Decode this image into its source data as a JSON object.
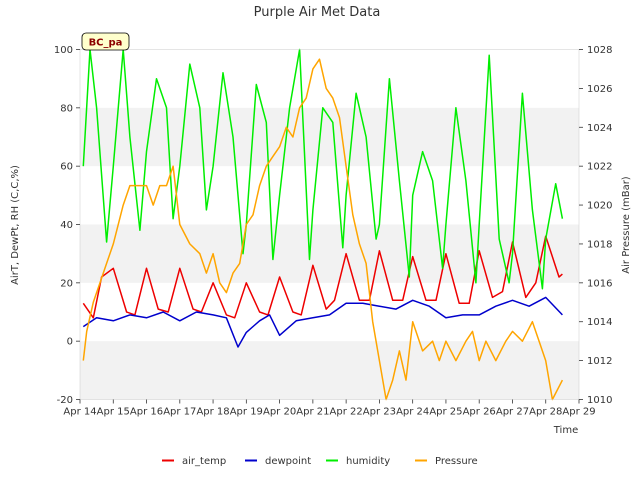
{
  "chart_data": {
    "type": "line",
    "title": "Purple Air Met Data",
    "site_label": "BC_pa",
    "xlabel": "Time",
    "ylabel": "AirT, DewPt, RH (C,C,%)",
    "y2label": "Air Pressure (mBar)",
    "x_ticks": [
      "Apr 14",
      "Apr 15",
      "Apr 16",
      "Apr 17",
      "Apr 18",
      "Apr 19",
      "Apr 20",
      "Apr 21",
      "Apr 22",
      "Apr 23",
      "Apr 24",
      "Apr 25",
      "Apr 26",
      "Apr 27",
      "Apr 28",
      "Apr 29"
    ],
    "x_range_days": [
      14,
      29
    ],
    "ylim": [
      -20,
      100
    ],
    "y_ticks": [
      -20,
      0,
      20,
      40,
      60,
      80,
      100
    ],
    "y2lim": [
      1010,
      1028
    ],
    "y2_ticks": [
      1010,
      1012,
      1014,
      1016,
      1018,
      1020,
      1022,
      1024,
      1026,
      1028
    ],
    "grid": "horizontal bands",
    "legend_position": "bottom",
    "colors": {
      "air_temp": "#ee0000",
      "dewpoint": "#0000cc",
      "humidity": "#00ee00",
      "Pressure": "#ffa500",
      "band": "#f2f2f2"
    },
    "series": [
      {
        "name": "air_temp",
        "axis": "left",
        "x": [
          14.1,
          14.4,
          14.65,
          15.0,
          15.4,
          15.65,
          16.0,
          16.35,
          16.65,
          17.0,
          17.4,
          17.65,
          18.0,
          18.4,
          18.65,
          19.0,
          19.4,
          19.65,
          20.0,
          20.4,
          20.65,
          21.0,
          21.4,
          21.65,
          22.0,
          22.4,
          22.7,
          23.0,
          23.4,
          23.7,
          24.0,
          24.4,
          24.7,
          25.0,
          25.4,
          25.7,
          26.0,
          26.4,
          26.7,
          27.0,
          27.4,
          27.7,
          28.0,
          28.4,
          28.5
        ],
        "y": [
          13,
          8,
          22,
          25,
          10,
          9,
          25,
          11,
          10,
          25,
          11,
          10,
          20,
          9,
          8,
          20,
          10,
          9,
          22,
          10,
          9,
          26,
          11,
          14,
          30,
          14,
          14,
          31,
          14,
          14,
          29,
          14,
          14,
          30,
          13,
          13,
          31,
          15,
          17,
          34,
          15,
          20,
          36,
          22,
          23
        ]
      },
      {
        "name": "dewpoint",
        "axis": "left",
        "x": [
          14.1,
          14.5,
          15.0,
          15.5,
          16.0,
          16.5,
          17.0,
          17.5,
          18.0,
          18.4,
          18.75,
          19.0,
          19.4,
          19.7,
          20.0,
          20.5,
          21.0,
          21.5,
          22.0,
          22.5,
          23.0,
          23.5,
          24.0,
          24.5,
          25.0,
          25.5,
          26.0,
          26.5,
          27.0,
          27.5,
          28.0,
          28.5
        ],
        "y": [
          5,
          8,
          7,
          9,
          8,
          10,
          7,
          10,
          9,
          8,
          -2,
          3,
          7,
          9,
          2,
          7,
          8,
          9,
          13,
          13,
          12,
          11,
          14,
          12,
          8,
          9,
          9,
          12,
          14,
          12,
          15,
          9
        ]
      },
      {
        "name": "humidity",
        "axis": "left",
        "x": [
          14.1,
          14.3,
          14.5,
          14.8,
          15.0,
          15.3,
          15.5,
          15.8,
          16.0,
          16.3,
          16.6,
          16.8,
          17.0,
          17.3,
          17.6,
          17.8,
          18.0,
          18.3,
          18.6,
          18.9,
          19.0,
          19.3,
          19.6,
          19.8,
          20.0,
          20.3,
          20.6,
          20.9,
          21.0,
          21.3,
          21.6,
          21.9,
          22.0,
          22.3,
          22.6,
          22.9,
          23.0,
          23.3,
          23.6,
          23.9,
          24.0,
          24.3,
          24.6,
          24.9,
          25.0,
          25.3,
          25.6,
          25.9,
          26.0,
          26.3,
          26.6,
          26.9,
          27.0,
          27.3,
          27.6,
          27.9,
          28.0,
          28.3,
          28.5
        ],
        "y": [
          60,
          100,
          80,
          34,
          60,
          100,
          70,
          38,
          65,
          90,
          80,
          42,
          60,
          95,
          80,
          45,
          60,
          92,
          70,
          30,
          40,
          88,
          75,
          28,
          50,
          80,
          100,
          28,
          45,
          80,
          75,
          32,
          50,
          85,
          70,
          35,
          40,
          90,
          55,
          22,
          50,
          65,
          55,
          25,
          40,
          80,
          55,
          20,
          40,
          98,
          35,
          20,
          30,
          85,
          45,
          18,
          35,
          54,
          42
        ]
      },
      {
        "name": "Pressure",
        "axis": "right",
        "x": [
          14.1,
          14.2,
          14.4,
          14.6,
          14.8,
          15.0,
          15.3,
          15.5,
          15.7,
          16.0,
          16.2,
          16.4,
          16.6,
          16.8,
          17.0,
          17.3,
          17.6,
          17.8,
          18.0,
          18.2,
          18.4,
          18.6,
          18.8,
          19.0,
          19.2,
          19.4,
          19.6,
          19.8,
          20.0,
          20.2,
          20.4,
          20.6,
          20.8,
          21.0,
          21.2,
          21.4,
          21.6,
          21.8,
          22.0,
          22.2,
          22.4,
          22.6,
          22.8,
          23.0,
          23.2,
          23.4,
          23.6,
          23.8,
          24.0,
          24.3,
          24.6,
          24.8,
          25.0,
          25.3,
          25.6,
          25.8,
          26.0,
          26.2,
          26.5,
          26.8,
          27.0,
          27.3,
          27.6,
          27.8,
          28.0,
          28.2,
          28.5
        ],
        "y": [
          1012,
          1013.5,
          1015,
          1016,
          1017,
          1018,
          1020,
          1021,
          1021,
          1021,
          1020,
          1021,
          1021,
          1022,
          1019,
          1018,
          1017.5,
          1016.5,
          1017.5,
          1016,
          1015.5,
          1016.5,
          1017,
          1019,
          1019.5,
          1021,
          1022,
          1022.5,
          1023,
          1024,
          1023.5,
          1025,
          1025.5,
          1027,
          1027.5,
          1026,
          1025.5,
          1024.5,
          1022,
          1019.5,
          1018,
          1017,
          1014,
          1012,
          1010,
          1011,
          1012.5,
          1011,
          1014,
          1012.5,
          1013,
          1012,
          1013,
          1012,
          1013,
          1013.5,
          1012,
          1013,
          1012,
          1013,
          1013.5,
          1013,
          1014,
          1013,
          1012,
          1010,
          1011
        ]
      }
    ]
  }
}
